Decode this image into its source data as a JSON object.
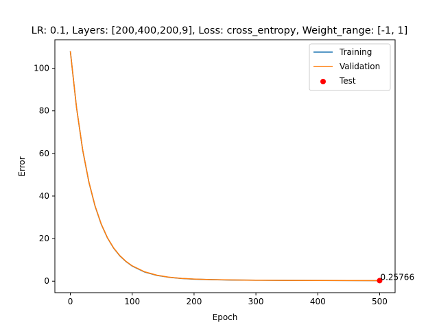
{
  "chart_data": {
    "type": "line",
    "title": "LR: 0.1, Layers: [200,400,200,9], Loss: cross_entropy, Weight_range: [-1, 1]",
    "xlabel": "Epoch",
    "ylabel": "Error",
    "xlim": [
      -25,
      525
    ],
    "ylim": [
      -5.4,
      113.4
    ],
    "xticks": [
      0,
      100,
      200,
      300,
      400,
      500
    ],
    "yticks": [
      0,
      20,
      40,
      60,
      80,
      100
    ],
    "grid": false,
    "legend_position": "top-right",
    "series": [
      {
        "name": "Training",
        "color": "#1f77b4",
        "x": [
          0,
          10,
          20,
          30,
          40,
          50,
          60,
          70,
          80,
          90,
          100,
          120,
          140,
          160,
          180,
          200,
          230,
          260,
          300,
          350,
          400,
          450,
          500
        ],
        "y": [
          108,
          81.5,
          61.5,
          46.5,
          35.2,
          26.7,
          20.3,
          15.5,
          11.9,
          9.2,
          7.1,
          4.3,
          2.7,
          1.8,
          1.25,
          0.95,
          0.7,
          0.55,
          0.45,
          0.38,
          0.33,
          0.29,
          0.26
        ]
      },
      {
        "name": "Validation",
        "color": "#ff7f0e",
        "x": [
          0,
          10,
          20,
          30,
          40,
          50,
          60,
          70,
          80,
          90,
          100,
          120,
          140,
          160,
          180,
          200,
          230,
          260,
          300,
          350,
          400,
          450,
          500
        ],
        "y": [
          108,
          81.6,
          61.6,
          46.6,
          35.3,
          26.8,
          20.4,
          15.6,
          12.0,
          9.3,
          7.2,
          4.4,
          2.8,
          1.85,
          1.3,
          1.0,
          0.72,
          0.57,
          0.46,
          0.39,
          0.34,
          0.3,
          0.27
        ]
      }
    ],
    "test_point": {
      "name": "Test",
      "color": "#ff0000",
      "x": 500,
      "y": 0.25766,
      "label": "0.25766"
    }
  }
}
